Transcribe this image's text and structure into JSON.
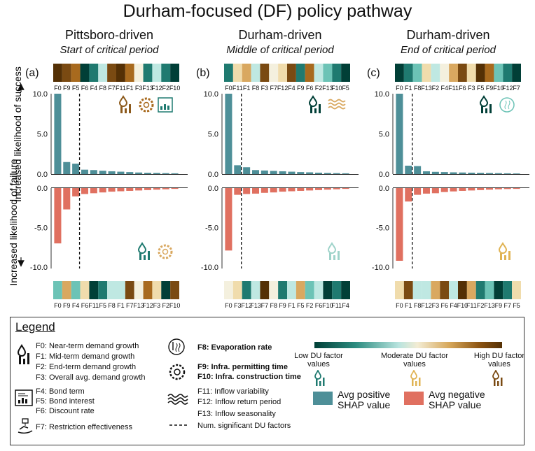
{
  "figure": {
    "title": "Durham-focused (DF) policy pathway",
    "ylabel_success": "Increased likelihood of success",
    "ylabel_failure": "Increased likelihood of failure"
  },
  "colors": {
    "positive": "#4e8f98",
    "negative": "#e07060",
    "du_scale": [
      "#013f37",
      "#1f7a70",
      "#6cc3b6",
      "#bfe8e2",
      "#f4f0de",
      "#f0dcac",
      "#d9a860",
      "#a86a1e",
      "#7a4a12",
      "#543005"
    ]
  },
  "panels": [
    {
      "label": "(a)",
      "driver": "Pittsboro-driven",
      "period": "Start of critical period",
      "success_factors": [
        "F0",
        "F9",
        "F5",
        "F6",
        "F4",
        "F8",
        "F7",
        "F11",
        "F1",
        "F3",
        "F13",
        "F12",
        "F2",
        "F10"
      ],
      "success_values": [
        10.0,
        1.5,
        1.3,
        0.55,
        0.5,
        0.42,
        0.35,
        0.3,
        0.25,
        0.2,
        0.17,
        0.15,
        0.12,
        0.1
      ],
      "success_value_levels": [
        9,
        8,
        7,
        0,
        1,
        3,
        8,
        9,
        7,
        4,
        1,
        3,
        1,
        0
      ],
      "failure_factors": [
        "F0",
        "F9",
        "F4",
        "F6",
        "F11",
        "F5",
        "F8",
        "F1",
        "F7",
        "F13",
        "F12",
        "F3",
        "F2",
        "F10"
      ],
      "failure_values": [
        -7.0,
        -2.7,
        -1.05,
        -0.75,
        -0.65,
        -0.55,
        -0.45,
        -0.4,
        -0.35,
        -0.3,
        -0.25,
        -0.2,
        -0.15,
        -0.1
      ],
      "failure_value_levels": [
        2,
        6,
        2,
        5,
        0,
        1,
        3,
        3,
        8,
        4,
        7,
        5,
        0,
        8
      ],
      "significant_factors": 3,
      "success_icons": [
        "demand-icon",
        "infrastructure-icon",
        "finance-icon"
      ],
      "success_icon_colors": [
        "#8c5a1c",
        "#a86a1e",
        "#1f7a70"
      ],
      "failure_icons": [
        "demand-icon",
        "infrastructure-icon"
      ],
      "failure_icon_colors": [
        "#1f7a70",
        "#d9a860"
      ]
    },
    {
      "label": "(b)",
      "driver": "Durham-driven",
      "period": "Middle of critical period",
      "success_factors": [
        "F0",
        "F11",
        "F1",
        "F8",
        "F3",
        "F7",
        "F12",
        "F4",
        "F9",
        "F6",
        "F2",
        "F13",
        "F10",
        "F5"
      ],
      "success_values": [
        10.0,
        1.1,
        0.85,
        0.5,
        0.45,
        0.4,
        0.35,
        0.3,
        0.25,
        0.22,
        0.18,
        0.15,
        0.12,
        0.1
      ],
      "success_value_levels": [
        1,
        5,
        6,
        3,
        8,
        4,
        5,
        8,
        1,
        7,
        3,
        2,
        1,
        0
      ],
      "failure_factors": [
        "F0",
        "F3",
        "F12",
        "F13",
        "F7",
        "F8",
        "F9",
        "F1",
        "F5",
        "F2",
        "F6",
        "F10",
        "F11",
        "F4"
      ],
      "failure_values": [
        -7.9,
        -0.85,
        -0.75,
        -0.7,
        -0.6,
        -0.55,
        -0.45,
        -0.4,
        -0.35,
        -0.3,
        -0.25,
        -0.2,
        -0.15,
        -0.1
      ],
      "failure_value_levels": [
        4,
        5,
        1,
        3,
        9,
        4,
        1,
        3,
        6,
        2,
        3,
        0,
        1,
        0
      ],
      "significant_factors": 2,
      "success_icons": [
        "demand-icon",
        "inflow-icon"
      ],
      "success_icon_colors": [
        "#013f37",
        "#d9a860"
      ],
      "failure_icons": [
        "demand-icon"
      ],
      "failure_icon_colors": [
        "#9fd3ca"
      ]
    },
    {
      "label": "(c)",
      "driver": "Durham-driven",
      "period": "End of critical period",
      "success_factors": [
        "F0",
        "F1",
        "F8",
        "F13",
        "F2",
        "F4",
        "F11",
        "F6",
        "F3",
        "F5",
        "F9",
        "F10",
        "F12",
        "F7"
      ],
      "success_values": [
        10.0,
        1.05,
        1.0,
        0.35,
        0.28,
        0.25,
        0.22,
        0.2,
        0.18,
        0.16,
        0.14,
        0.12,
        0.1,
        0.08
      ],
      "success_value_levels": [
        0,
        1,
        2,
        5,
        3,
        4,
        6,
        8,
        5,
        9,
        7,
        2,
        1,
        0
      ],
      "failure_factors": [
        "F0",
        "F1",
        "F8",
        "F12",
        "F3",
        "F6",
        "F4",
        "F10",
        "F11",
        "F2",
        "F13",
        "F9",
        "F7",
        "F5"
      ],
      "failure_values": [
        -9.2,
        -1.7,
        -0.85,
        -0.7,
        -0.65,
        -0.5,
        -0.42,
        -0.35,
        -0.3,
        -0.25,
        -0.2,
        -0.15,
        -0.12,
        -0.1
      ],
      "failure_value_levels": [
        5,
        8,
        3,
        3,
        6,
        8,
        3,
        9,
        6,
        1,
        2,
        0,
        1,
        5
      ],
      "significant_factors": 2,
      "success_icons": [
        "demand-icon",
        "evaporation-icon"
      ],
      "success_icon_colors": [
        "#013f37",
        "#6cc3b6"
      ],
      "failure_icons": [
        "demand-icon"
      ],
      "failure_icon_colors": [
        "#e0b353"
      ]
    }
  ],
  "chart_data": [
    {
      "type": "bar",
      "title": "(a) Pittsboro-driven — Start of critical period",
      "success": {
        "categories": [
          "F0",
          "F9",
          "F5",
          "F6",
          "F4",
          "F8",
          "F7",
          "F11",
          "F1",
          "F3",
          "F13",
          "F12",
          "F2",
          "F10"
        ],
        "values": [
          10.0,
          1.5,
          1.3,
          0.55,
          0.5,
          0.42,
          0.35,
          0.3,
          0.25,
          0.2,
          0.17,
          0.15,
          0.12,
          0.1
        ]
      },
      "failure": {
        "categories": [
          "F0",
          "F9",
          "F4",
          "F6",
          "F11",
          "F5",
          "F8",
          "F1",
          "F7",
          "F13",
          "F12",
          "F3",
          "F2",
          "F10"
        ],
        "values": [
          -7.0,
          -2.7,
          -1.05,
          -0.75,
          -0.65,
          -0.55,
          -0.45,
          -0.4,
          -0.35,
          -0.3,
          -0.25,
          -0.2,
          -0.15,
          -0.1
        ]
      },
      "success_ylim": [
        0,
        10
      ],
      "failure_ylim": [
        -10,
        0
      ],
      "success_ticks": [
        "10.0",
        "5.0",
        "0.0"
      ],
      "failure_ticks": [
        "0.0",
        "-5.0",
        "-10.0"
      ]
    },
    {
      "type": "bar",
      "title": "(b) Durham-driven — Middle of critical period",
      "success": {
        "categories": [
          "F0",
          "F11",
          "F1",
          "F8",
          "F3",
          "F7",
          "F12",
          "F4",
          "F9",
          "F6",
          "F2",
          "F13",
          "F10",
          "F5"
        ],
        "values": [
          10.0,
          1.1,
          0.85,
          0.5,
          0.45,
          0.4,
          0.35,
          0.3,
          0.25,
          0.22,
          0.18,
          0.15,
          0.12,
          0.1
        ]
      },
      "failure": {
        "categories": [
          "F0",
          "F3",
          "F12",
          "F13",
          "F7",
          "F8",
          "F9",
          "F1",
          "F5",
          "F2",
          "F6",
          "F10",
          "F11",
          "F4"
        ],
        "values": [
          -7.9,
          -0.85,
          -0.75,
          -0.7,
          -0.6,
          -0.55,
          -0.45,
          -0.4,
          -0.35,
          -0.3,
          -0.25,
          -0.2,
          -0.15,
          -0.1
        ]
      },
      "success_ylim": [
        0,
        10
      ],
      "failure_ylim": [
        -10,
        0
      ],
      "success_ticks": [
        "10.0",
        "5.0",
        "0.0"
      ],
      "failure_ticks": [
        "0.0",
        "-5.0",
        "-10.0"
      ]
    },
    {
      "type": "bar",
      "title": "(c) Durham-driven — End of critical period",
      "success": {
        "categories": [
          "F0",
          "F1",
          "F8",
          "F13",
          "F2",
          "F4",
          "F11",
          "F6",
          "F3",
          "F5",
          "F9",
          "F10",
          "F12",
          "F7"
        ],
        "values": [
          10.0,
          1.05,
          1.0,
          0.35,
          0.28,
          0.25,
          0.22,
          0.2,
          0.18,
          0.16,
          0.14,
          0.12,
          0.1,
          0.08
        ]
      },
      "failure": {
        "categories": [
          "F0",
          "F1",
          "F8",
          "F12",
          "F3",
          "F6",
          "F4",
          "F10",
          "F11",
          "F2",
          "F13",
          "F9",
          "F7",
          "F5"
        ],
        "values": [
          -9.2,
          -1.7,
          -0.85,
          -0.7,
          -0.65,
          -0.5,
          -0.42,
          -0.35,
          -0.3,
          -0.25,
          -0.2,
          -0.15,
          -0.12,
          -0.1
        ]
      },
      "success_ylim": [
        0,
        10
      ],
      "failure_ylim": [
        -10,
        0
      ],
      "success_ticks": [
        "10.0",
        "5.0",
        "0.0"
      ],
      "failure_ticks": [
        "0.0",
        "-5.0",
        "-10.0"
      ]
    }
  ],
  "legend": {
    "title": "Legend",
    "factors": [
      "F0: Near-term demand growth",
      "F1: Mid-term demand growth",
      "F2: End-term demand growth",
      "F3: Overall avg. demand growth",
      "F4: Bond term",
      "F5: Bond interest",
      "F6: Discount rate",
      "F7: Restriction effectiveness",
      "F8: Evaporation rate",
      "F9: Infra. permitting time",
      "F10: Infra. construction time",
      "F11: Inflow variability",
      "F12: Inflow return period",
      "F13: Inflow seasonality"
    ],
    "significance": "Num. significant DU factors",
    "colorbar": {
      "low": "Low DU factor values",
      "moderate": "Moderate DU factor values",
      "high": "High DU factor values"
    },
    "positive_label": "Avg positive SHAP value",
    "negative_label": "Avg negative SHAP value"
  }
}
